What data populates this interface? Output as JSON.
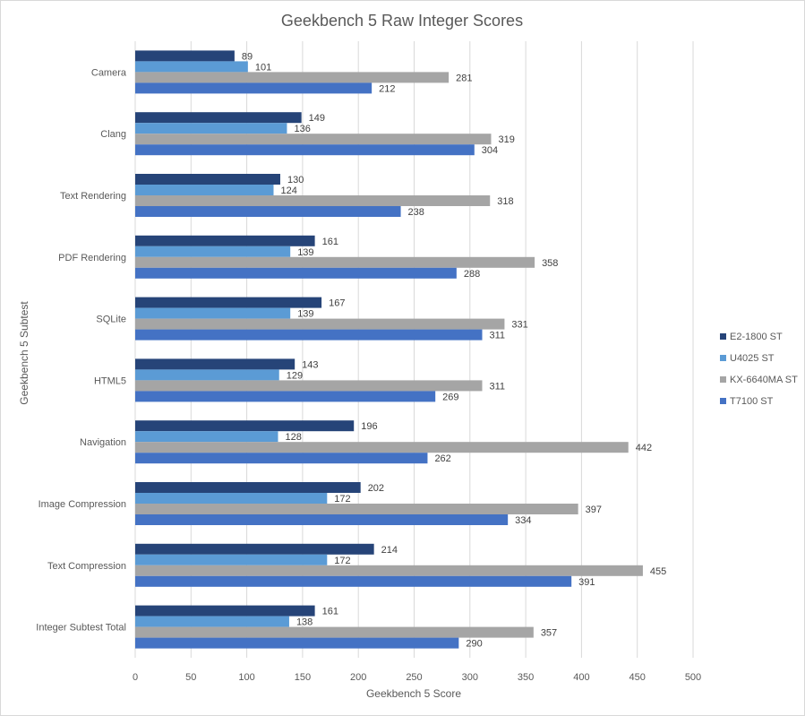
{
  "chart_data": {
    "type": "bar",
    "orientation": "horizontal",
    "title": "Geekbench 5 Raw Integer Scores",
    "xlabel": "Geekbench  5 Score",
    "ylabel": "Geekbench  5 Subtest",
    "xlim": [
      0,
      500
    ],
    "xticks": [
      0,
      50,
      100,
      150,
      200,
      250,
      300,
      350,
      400,
      450,
      500
    ],
    "grid": true,
    "legend_position": "right",
    "categories": [
      "Camera",
      "Clang",
      "Text Rendering",
      "PDF Rendering",
      "SQLite",
      "HTML5",
      "Navigation",
      "Image Compression",
      "Text Compression",
      "Integer Subtest Total"
    ],
    "series": [
      {
        "name": "E2-1800 ST",
        "color": "#264478",
        "values": [
          89,
          149,
          130,
          161,
          167,
          143,
          196,
          202,
          214,
          161
        ]
      },
      {
        "name": "U4025 ST",
        "color": "#5b9bd5",
        "values": [
          101,
          136,
          124,
          139,
          139,
          129,
          128,
          172,
          172,
          138
        ]
      },
      {
        "name": "KX-6640MA ST",
        "color": "#a5a5a5",
        "values": [
          281,
          319,
          318,
          358,
          331,
          311,
          442,
          397,
          455,
          357
        ]
      },
      {
        "name": "T7100 ST",
        "color": "#4472c4",
        "values": [
          212,
          304,
          238,
          288,
          311,
          269,
          262,
          334,
          391,
          290
        ]
      }
    ]
  }
}
